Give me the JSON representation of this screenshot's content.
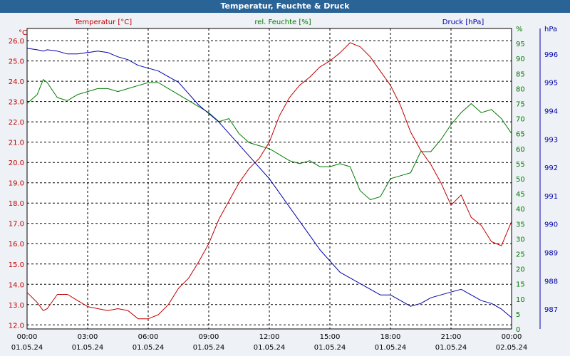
{
  "title": "Temperatur, Feuchte & Druck",
  "colors": {
    "temperature": "#c00000",
    "humidity": "#007a00",
    "pressure": "#0000aa",
    "title_bar": "#2a6396",
    "grid": "#000000"
  },
  "chart_data": {
    "type": "line",
    "title": "Temperatur, Feuchte & Druck",
    "grid": true,
    "x_ticks": [
      {
        "time": "00:00",
        "date": "01.05.24"
      },
      {
        "time": "03:00",
        "date": "01.05.24"
      },
      {
        "time": "06:00",
        "date": "01.05.24"
      },
      {
        "time": "09:00",
        "date": "01.05.24"
      },
      {
        "time": "12:00",
        "date": "01.05.24"
      },
      {
        "time": "15:00",
        "date": "01.05.24"
      },
      {
        "time": "18:00",
        "date": "01.05.24"
      },
      {
        "time": "21:00",
        "date": "01.05.24"
      },
      {
        "time": "00:00",
        "date": "02.05.24"
      }
    ],
    "x_range_hours": [
      0,
      24
    ],
    "axes": {
      "temperature": {
        "unit": "°C",
        "ylim": [
          11.8,
          26.6
        ],
        "ticks": [
          "12.0",
          "13.0",
          "14.0",
          "15.0",
          "16.0",
          "17.0",
          "18.0",
          "19.0",
          "20.0",
          "21.0",
          "22.0",
          "23.0",
          "24.0",
          "25.0",
          "26.0"
        ]
      },
      "humidity": {
        "unit": "%",
        "ylim": [
          0,
          100
        ],
        "ticks": [
          "0",
          "5",
          "10",
          "15",
          "20",
          "25",
          "30",
          "35",
          "40",
          "45",
          "50",
          "55",
          "60",
          "65",
          "70",
          "75",
          "80",
          "85",
          "90",
          "95",
          "%"
        ]
      },
      "pressure": {
        "unit": "hPa",
        "ylim": [
          986.3,
          996.9
        ],
        "ticks": [
          "987",
          "988",
          "989",
          "990",
          "991",
          "992",
          "993",
          "994",
          "995",
          "996",
          "hPa"
        ]
      }
    },
    "series": [
      {
        "name": "Temperatur [°C]",
        "axis": "temperature",
        "x": [
          0,
          0.5,
          0.8,
          1,
          1.5,
          2,
          2.5,
          3,
          3.5,
          4,
          4.5,
          5,
          5.5,
          6,
          6.5,
          7,
          7.5,
          8,
          8.5,
          9,
          9.5,
          10,
          10.5,
          11,
          11.5,
          12,
          12.5,
          13,
          13.5,
          14,
          14.5,
          15,
          15.5,
          16,
          16.5,
          17,
          17.5,
          18,
          18.5,
          19,
          19.5,
          20,
          20.5,
          21,
          21.5,
          22,
          22.5,
          23,
          23.5,
          24
        ],
        "values": [
          13.6,
          13.1,
          12.7,
          12.8,
          13.5,
          13.5,
          13.2,
          12.9,
          12.8,
          12.7,
          12.8,
          12.7,
          12.3,
          12.3,
          12.5,
          13.0,
          13.8,
          14.3,
          15.1,
          16.0,
          17.2,
          18.1,
          19.0,
          19.7,
          20.2,
          21.0,
          22.3,
          23.2,
          23.8,
          24.2,
          24.7,
          25.0,
          25.4,
          25.9,
          25.7,
          25.2,
          24.5,
          23.8,
          22.8,
          21.5,
          20.6,
          19.9,
          19.0,
          17.9,
          18.4,
          17.3,
          16.9,
          16.1,
          15.9,
          17.1
        ]
      },
      {
        "name": "rel. Feuchte [%]",
        "axis": "humidity",
        "x": [
          0,
          0.5,
          0.8,
          1,
          1.5,
          2,
          2.5,
          3,
          3.5,
          4,
          4.5,
          5,
          5.5,
          6,
          6.5,
          7,
          7.5,
          8,
          8.5,
          9,
          9.5,
          10,
          10.5,
          11,
          11.5,
          12,
          12.5,
          13,
          13.5,
          14,
          14.5,
          15,
          15.5,
          16,
          16.5,
          17,
          17.5,
          18,
          18.5,
          19,
          19.5,
          20,
          20.5,
          21,
          21.5,
          22,
          22.5,
          23,
          23.5,
          24
        ],
        "values": [
          75,
          78,
          83,
          82,
          77,
          76,
          78,
          79,
          80,
          80,
          79,
          80,
          81,
          82,
          82,
          80,
          78,
          76,
          74,
          72,
          69,
          70,
          65,
          62,
          61,
          60,
          58,
          56,
          55,
          56,
          54,
          54,
          55,
          54,
          46,
          43,
          44,
          50,
          51,
          52,
          59,
          59,
          63,
          68,
          72,
          75,
          72,
          73,
          70,
          65
        ]
      },
      {
        "name": "Druck [hPa]",
        "axis": "pressure",
        "x": [
          0,
          0.5,
          0.8,
          1,
          1.5,
          2,
          2.5,
          3,
          3.5,
          4,
          4.5,
          5,
          5.5,
          6,
          6.5,
          7,
          7.5,
          8,
          8.5,
          9,
          9.5,
          10,
          10.5,
          11,
          11.5,
          12,
          12.5,
          13,
          13.5,
          14,
          14.5,
          15,
          15.5,
          16,
          16.5,
          17,
          17.5,
          18,
          18.5,
          19,
          19.5,
          20,
          20.5,
          21,
          21.5,
          22,
          22.5,
          23,
          23.5,
          24
        ],
        "values": [
          996.2,
          996.15,
          996.1,
          996.15,
          996.1,
          996.0,
          996.0,
          996.05,
          996.1,
          996.05,
          995.9,
          995.8,
          995.6,
          995.5,
          995.4,
          995.2,
          995.0,
          994.6,
          994.2,
          993.9,
          993.6,
          993.2,
          992.8,
          992.4,
          992.0,
          991.6,
          991.1,
          990.6,
          990.1,
          989.6,
          989.1,
          988.7,
          988.3,
          988.1,
          987.9,
          987.7,
          987.5,
          987.5,
          987.3,
          987.1,
          987.2,
          987.4,
          987.5,
          987.6,
          987.7,
          987.5,
          987.3,
          987.2,
          987.0,
          986.7
        ]
      }
    ]
  }
}
